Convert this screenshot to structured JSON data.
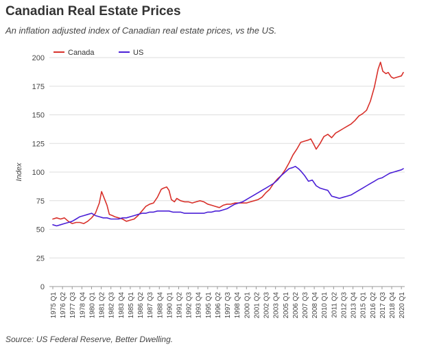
{
  "header": {
    "title": "Canadian Real Estate Prices",
    "subtitle": "An inflation adjusted index of Canadian real estate prices, vs the US."
  },
  "footer": {
    "source": "Source: US Federal Reserve, Better Dwelling."
  },
  "colors": {
    "canada": "#d8302a",
    "us": "#4a1fd6",
    "grid": "#dddddd",
    "axis_text": "#444444"
  },
  "chart_data": {
    "type": "line",
    "ylabel": "Index",
    "xlabel": "",
    "ylim": [
      0,
      200
    ],
    "yticks": [
      0,
      25,
      50,
      75,
      100,
      125,
      150,
      175,
      200
    ],
    "grid": true,
    "legend_position": "top-left",
    "x_tick_labels": [
      "1975 Q1",
      "1976 Q2",
      "1977 Q3",
      "1978 Q4",
      "1980 Q1",
      "1981 Q2",
      "1982 Q3",
      "1983 Q4",
      "1985 Q1",
      "1986 Q2",
      "1987 Q3",
      "1988 Q4",
      "1990 Q1",
      "1991 Q2",
      "1992 Q3",
      "1993 Q4",
      "1995 Q1",
      "1996 Q2",
      "1997 Q3",
      "1998 Q4",
      "2000 Q1",
      "2001 Q2",
      "2002 Q3",
      "2003 Q4",
      "2005 Q1",
      "2006 Q2",
      "2007 Q3",
      "2008 Q4",
      "2010 Q1",
      "2011 Q2",
      "2012 Q3",
      "2013 Q4",
      "2015 Q1",
      "2016 Q2",
      "2017 Q3",
      "2018 Q4",
      "2020 Q1"
    ],
    "series": [
      {
        "name": "Canada",
        "points": [
          [
            1975.0,
            59
          ],
          [
            1975.5,
            60
          ],
          [
            1976.0,
            59
          ],
          [
            1976.5,
            60
          ],
          [
            1977.0,
            57
          ],
          [
            1977.5,
            55
          ],
          [
            1978.0,
            56
          ],
          [
            1978.5,
            56
          ],
          [
            1979.0,
            55
          ],
          [
            1979.5,
            57
          ],
          [
            1980.0,
            60
          ],
          [
            1980.5,
            64
          ],
          [
            1981.0,
            73
          ],
          [
            1981.3,
            83
          ],
          [
            1981.7,
            76
          ],
          [
            1982.0,
            71
          ],
          [
            1982.3,
            63
          ],
          [
            1982.7,
            62
          ],
          [
            1983.0,
            61
          ],
          [
            1983.5,
            60
          ],
          [
            1984.0,
            59
          ],
          [
            1984.5,
            57
          ],
          [
            1985.0,
            58
          ],
          [
            1985.5,
            59
          ],
          [
            1986.0,
            62
          ],
          [
            1986.5,
            66
          ],
          [
            1987.0,
            70
          ],
          [
            1987.5,
            72
          ],
          [
            1988.0,
            73
          ],
          [
            1988.5,
            78
          ],
          [
            1989.0,
            85
          ],
          [
            1989.3,
            86
          ],
          [
            1989.7,
            87
          ],
          [
            1990.0,
            84
          ],
          [
            1990.3,
            76
          ],
          [
            1990.7,
            74
          ],
          [
            1991.0,
            77
          ],
          [
            1991.5,
            75
          ],
          [
            1992.0,
            74
          ],
          [
            1992.5,
            74
          ],
          [
            1993.0,
            73
          ],
          [
            1993.5,
            74
          ],
          [
            1994.0,
            75
          ],
          [
            1994.5,
            74
          ],
          [
            1995.0,
            72
          ],
          [
            1995.5,
            71
          ],
          [
            1996.0,
            70
          ],
          [
            1996.5,
            69
          ],
          [
            1997.0,
            71
          ],
          [
            1997.5,
            72
          ],
          [
            1998.0,
            72
          ],
          [
            1998.5,
            73
          ],
          [
            1999.0,
            73
          ],
          [
            1999.5,
            73
          ],
          [
            2000.0,
            73
          ],
          [
            2000.5,
            74
          ],
          [
            2001.0,
            75
          ],
          [
            2001.5,
            76
          ],
          [
            2002.0,
            78
          ],
          [
            2002.5,
            82
          ],
          [
            2003.0,
            85
          ],
          [
            2003.5,
            90
          ],
          [
            2004.0,
            94
          ],
          [
            2004.5,
            97
          ],
          [
            2005.0,
            102
          ],
          [
            2005.5,
            108
          ],
          [
            2006.0,
            115
          ],
          [
            2006.5,
            120
          ],
          [
            2007.0,
            126
          ],
          [
            2007.5,
            127
          ],
          [
            2008.0,
            128
          ],
          [
            2008.3,
            129
          ],
          [
            2008.7,
            124
          ],
          [
            2009.0,
            120
          ],
          [
            2009.5,
            125
          ],
          [
            2010.0,
            131
          ],
          [
            2010.5,
            133
          ],
          [
            2011.0,
            130
          ],
          [
            2011.5,
            134
          ],
          [
            2012.0,
            136
          ],
          [
            2012.5,
            138
          ],
          [
            2013.0,
            140
          ],
          [
            2013.5,
            142
          ],
          [
            2014.0,
            145
          ],
          [
            2014.5,
            149
          ],
          [
            2015.0,
            151
          ],
          [
            2015.5,
            154
          ],
          [
            2016.0,
            162
          ],
          [
            2016.5,
            174
          ],
          [
            2017.0,
            190
          ],
          [
            2017.3,
            196
          ],
          [
            2017.6,
            188
          ],
          [
            2018.0,
            186
          ],
          [
            2018.3,
            187
          ],
          [
            2018.7,
            183
          ],
          [
            2019.0,
            182
          ],
          [
            2019.5,
            183
          ],
          [
            2020.0,
            184
          ],
          [
            2020.25,
            187
          ]
        ]
      },
      {
        "name": "US",
        "points": [
          [
            1975.0,
            54
          ],
          [
            1975.5,
            53
          ],
          [
            1976.0,
            54
          ],
          [
            1976.5,
            55
          ],
          [
            1977.0,
            56
          ],
          [
            1977.5,
            57
          ],
          [
            1978.0,
            59
          ],
          [
            1978.5,
            61
          ],
          [
            1979.0,
            62
          ],
          [
            1979.5,
            63
          ],
          [
            1980.0,
            64
          ],
          [
            1980.5,
            62
          ],
          [
            1981.0,
            61
          ],
          [
            1981.5,
            60
          ],
          [
            1982.0,
            60
          ],
          [
            1982.5,
            59
          ],
          [
            1983.0,
            59
          ],
          [
            1983.5,
            59
          ],
          [
            1984.0,
            60
          ],
          [
            1984.5,
            60
          ],
          [
            1985.0,
            61
          ],
          [
            1985.5,
            62
          ],
          [
            1986.0,
            63
          ],
          [
            1986.5,
            64
          ],
          [
            1987.0,
            64
          ],
          [
            1987.5,
            65
          ],
          [
            1988.0,
            65
          ],
          [
            1988.5,
            66
          ],
          [
            1989.0,
            66
          ],
          [
            1989.5,
            66
          ],
          [
            1990.0,
            66
          ],
          [
            1990.5,
            65
          ],
          [
            1991.0,
            65
          ],
          [
            1991.5,
            65
          ],
          [
            1992.0,
            64
          ],
          [
            1992.5,
            64
          ],
          [
            1993.0,
            64
          ],
          [
            1993.5,
            64
          ],
          [
            1994.0,
            64
          ],
          [
            1994.5,
            64
          ],
          [
            1995.0,
            65
          ],
          [
            1995.5,
            65
          ],
          [
            1996.0,
            66
          ],
          [
            1996.5,
            66
          ],
          [
            1997.0,
            67
          ],
          [
            1997.5,
            68
          ],
          [
            1998.0,
            70
          ],
          [
            1998.5,
            72
          ],
          [
            1999.0,
            73
          ],
          [
            1999.5,
            74
          ],
          [
            2000.0,
            76
          ],
          [
            2000.5,
            78
          ],
          [
            2001.0,
            80
          ],
          [
            2001.5,
            82
          ],
          [
            2002.0,
            84
          ],
          [
            2002.5,
            86
          ],
          [
            2003.0,
            88
          ],
          [
            2003.5,
            90
          ],
          [
            2004.0,
            93
          ],
          [
            2004.5,
            97
          ],
          [
            2005.0,
            100
          ],
          [
            2005.5,
            103
          ],
          [
            2006.0,
            104
          ],
          [
            2006.3,
            105
          ],
          [
            2006.7,
            103
          ],
          [
            2007.0,
            101
          ],
          [
            2007.5,
            97
          ],
          [
            2008.0,
            92
          ],
          [
            2008.5,
            93
          ],
          [
            2009.0,
            88
          ],
          [
            2009.5,
            86
          ],
          [
            2010.0,
            85
          ],
          [
            2010.5,
            84
          ],
          [
            2011.0,
            79
          ],
          [
            2011.5,
            78
          ],
          [
            2012.0,
            77
          ],
          [
            2012.5,
            78
          ],
          [
            2013.0,
            79
          ],
          [
            2013.5,
            80
          ],
          [
            2014.0,
            82
          ],
          [
            2014.5,
            84
          ],
          [
            2015.0,
            86
          ],
          [
            2015.5,
            88
          ],
          [
            2016.0,
            90
          ],
          [
            2016.5,
            92
          ],
          [
            2017.0,
            94
          ],
          [
            2017.5,
            95
          ],
          [
            2018.0,
            97
          ],
          [
            2018.5,
            99
          ],
          [
            2019.0,
            100
          ],
          [
            2019.5,
            101
          ],
          [
            2020.0,
            102
          ],
          [
            2020.25,
            103
          ]
        ]
      }
    ]
  }
}
